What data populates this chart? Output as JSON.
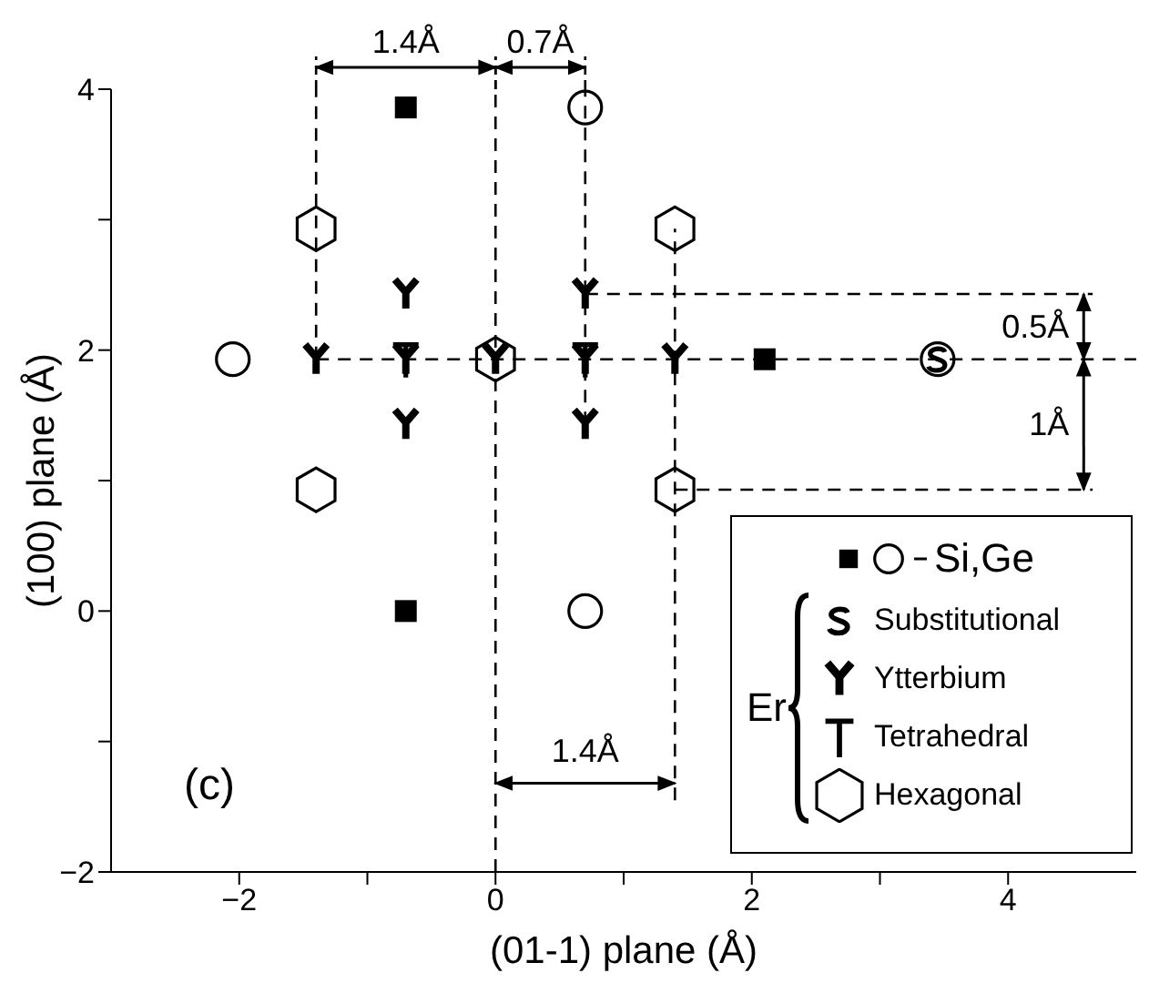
{
  "chart_data": {
    "type": "scatter",
    "xlabel": "(01-1) plane (Å)",
    "ylabel": "(100) plane (Å)",
    "xlim": [
      -3,
      5
    ],
    "ylim": [
      -2,
      4
    ],
    "xticks": [
      -2,
      {
        "value": -1,
        "label": null
      },
      0,
      {
        "value": 1,
        "label": null
      },
      2,
      {
        "value": 3,
        "label": null
      },
      4
    ],
    "yticks": [
      -2,
      {
        "value": -1,
        "label": null
      },
      0,
      {
        "value": 1,
        "label": null
      },
      2,
      {
        "value": 3,
        "label": null
      },
      4
    ],
    "legend": "bottom right",
    "legend_title": "Er",
    "annotations": [
      "1.4Å",
      "0.7Å",
      {
        "text": "0.5Å",
        "x": 4.59,
        "y": 2.43
      },
      "1Å",
      "1.4Å",
      "(c)"
    ],
    "series": [
      {
        "type": "line",
        "color": "#000000",
        "line_style": "dashed",
        "marker": "none",
        "x": [
          -1.4,
          -1.4
        ],
        "values": [
          1.93,
          4
        ]
      },
      {
        "type": "line",
        "color": "#000000",
        "line_style": "dashed",
        "marker": "none",
        "x": [
          0,
          0
        ],
        "values": [
          -2,
          4
        ]
      },
      {
        "type": "line",
        "color": "#000000",
        "line_style": "dashed",
        "marker": "none",
        "x": [
          0.7,
          0.7
        ],
        "values": [
          1.43,
          4
        ]
      },
      {
        "type": "line",
        "color": "#000000",
        "line_style": "dashed",
        "marker": "none",
        "x": [
          1.4,
          1.4
        ],
        "values": [
          -1.45,
          2.93
        ]
      },
      {
        "type": "line",
        "color": "#000000",
        "line_style": "dashed",
        "marker": "none",
        "x": [
          -1.4,
          5
        ],
        "values": [
          1.93,
          1.93
        ]
      },
      {
        "type": "line",
        "color": "#000000",
        "line_style": "dashed",
        "marker": "none",
        "x": [
          0.7,
          4.66
        ],
        "values": [
          2.43,
          2.43
        ]
      },
      {
        "type": "line",
        "color": "#000000",
        "line_style": "dashed",
        "marker": "none",
        "x": [
          1.4,
          4.66
        ],
        "values": [
          0.93,
          0.93
        ]
      },
      {
        "name": "Si,Ge",
        "color": "#000000",
        "marker": "square",
        "x": [
          -0.7,
          -0.7,
          2.1
        ],
        "values": [
          3.86,
          0,
          1.93
        ]
      },
      {
        "color": "#000000",
        "marker": "circle",
        "x": [
          -2.05,
          0.7,
          0.7,
          3.45
        ],
        "values": [
          1.93,
          3.86,
          0,
          1.93
        ]
      },
      {
        "name": "Substitutional",
        "color": "#000000",
        "marker": "cross",
        "x": [
          3.45
        ],
        "values": [
          1.93
        ]
      },
      {
        "name": "Ytterbium",
        "color": "#000000",
        "marker": "cross",
        "x": [
          -1.4,
          -0.7,
          -0.7,
          -0.7,
          0,
          0.7,
          0.7,
          0.7,
          1.4
        ],
        "values": [
          1.93,
          2.43,
          1.93,
          1.43,
          1.93,
          2.43,
          1.93,
          1.43,
          1.93
        ]
      },
      {
        "name": "Tetrahedral",
        "color": "#000000",
        "marker": "cross",
        "x": [
          -0.7,
          0.7
        ],
        "values": [
          1.93,
          1.93
        ]
      },
      {
        "name": "Hexagonal",
        "color": "#000000",
        "x": [
          -1.4,
          -1.4,
          0,
          1.4,
          1.4
        ],
        "values": [
          2.93,
          0.93,
          1.93,
          2.93,
          0.93
        ]
      }
    ]
  }
}
